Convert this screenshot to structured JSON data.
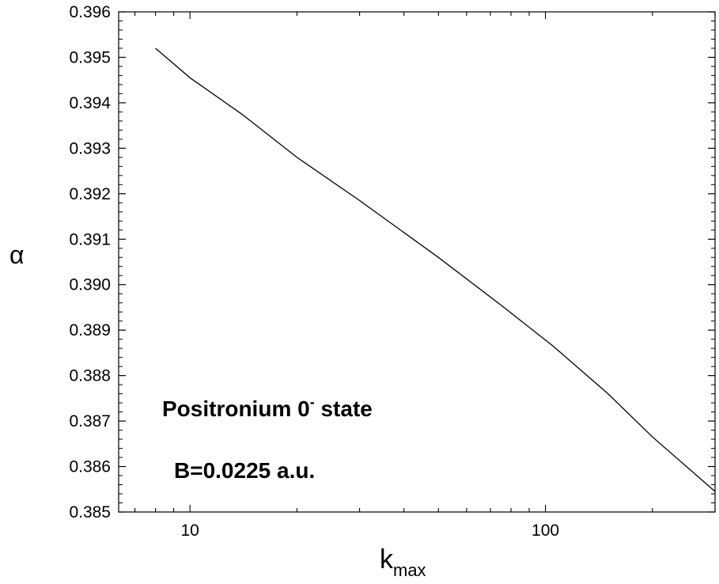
{
  "chart_data": {
    "type": "line",
    "xscale": "log",
    "xlim": [
      6.3,
      300
    ],
    "ylim": [
      0.385,
      0.396
    ],
    "xlabel": "k",
    "xlabel_sub": "max",
    "ylabel": "α",
    "x_ticks": [
      "10",
      "100"
    ],
    "y_ticks": [
      "0.385",
      "0.386",
      "0.387",
      "0.388",
      "0.389",
      "0.390",
      "0.391",
      "0.392",
      "0.393",
      "0.394",
      "0.395",
      "0.396"
    ],
    "grid": false,
    "series": [
      {
        "x": [
          8,
          10,
          14,
          20,
          30,
          50,
          75,
          105,
          150,
          200,
          300
        ],
        "y": [
          0.3952,
          0.39455,
          0.39375,
          0.3928,
          0.39185,
          0.3906,
          0.38955,
          0.38865,
          0.3876,
          0.38665,
          0.38545
        ],
        "color": "#000000"
      }
    ],
    "annotations": [
      {
        "text": "Positronium 0",
        "sup": "-",
        "text_after": " state"
      },
      {
        "text": "B=0.0225 a.u."
      }
    ]
  }
}
